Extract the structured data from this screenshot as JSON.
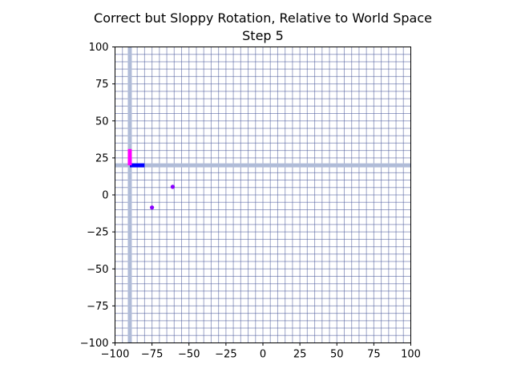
{
  "chart_data": {
    "type": "scatter",
    "title": "Correct but Sloppy Rotation, Relative to World Space",
    "subtitle": "Step 5",
    "xlabel": "",
    "ylabel": "",
    "xlim": [
      -100,
      100
    ],
    "ylim": [
      -100,
      100
    ],
    "xticks": [
      -100,
      -75,
      -50,
      -25,
      0,
      25,
      50,
      75,
      100
    ],
    "yticks": [
      -100,
      -75,
      -50,
      -25,
      0,
      25,
      50,
      75,
      100
    ],
    "xtick_labels": [
      "−100",
      "−75",
      "−50",
      "−25",
      "0",
      "25",
      "50",
      "75",
      "100"
    ],
    "ytick_labels": [
      "−100",
      "−75",
      "−50",
      "−25",
      "0",
      "25",
      "50",
      "75",
      "100"
    ],
    "grid": true,
    "grid_spacing": 5,
    "grid_color": "#4a5a9a",
    "world_axes": {
      "x": -90,
      "y": 20,
      "color": "#b0bcd8"
    },
    "frame": {
      "origin": [
        -90,
        20
      ],
      "x_axis": {
        "to": [
          -80,
          20
        ],
        "color": "#0000ff"
      },
      "y_axis": {
        "to": [
          -90,
          31
        ],
        "color": "#ff00ff"
      }
    },
    "points": [
      {
        "x": -61,
        "y": 5.5,
        "color": "#8800ff"
      },
      {
        "x": -75,
        "y": -8.5,
        "color": "#8800ff"
      }
    ]
  }
}
